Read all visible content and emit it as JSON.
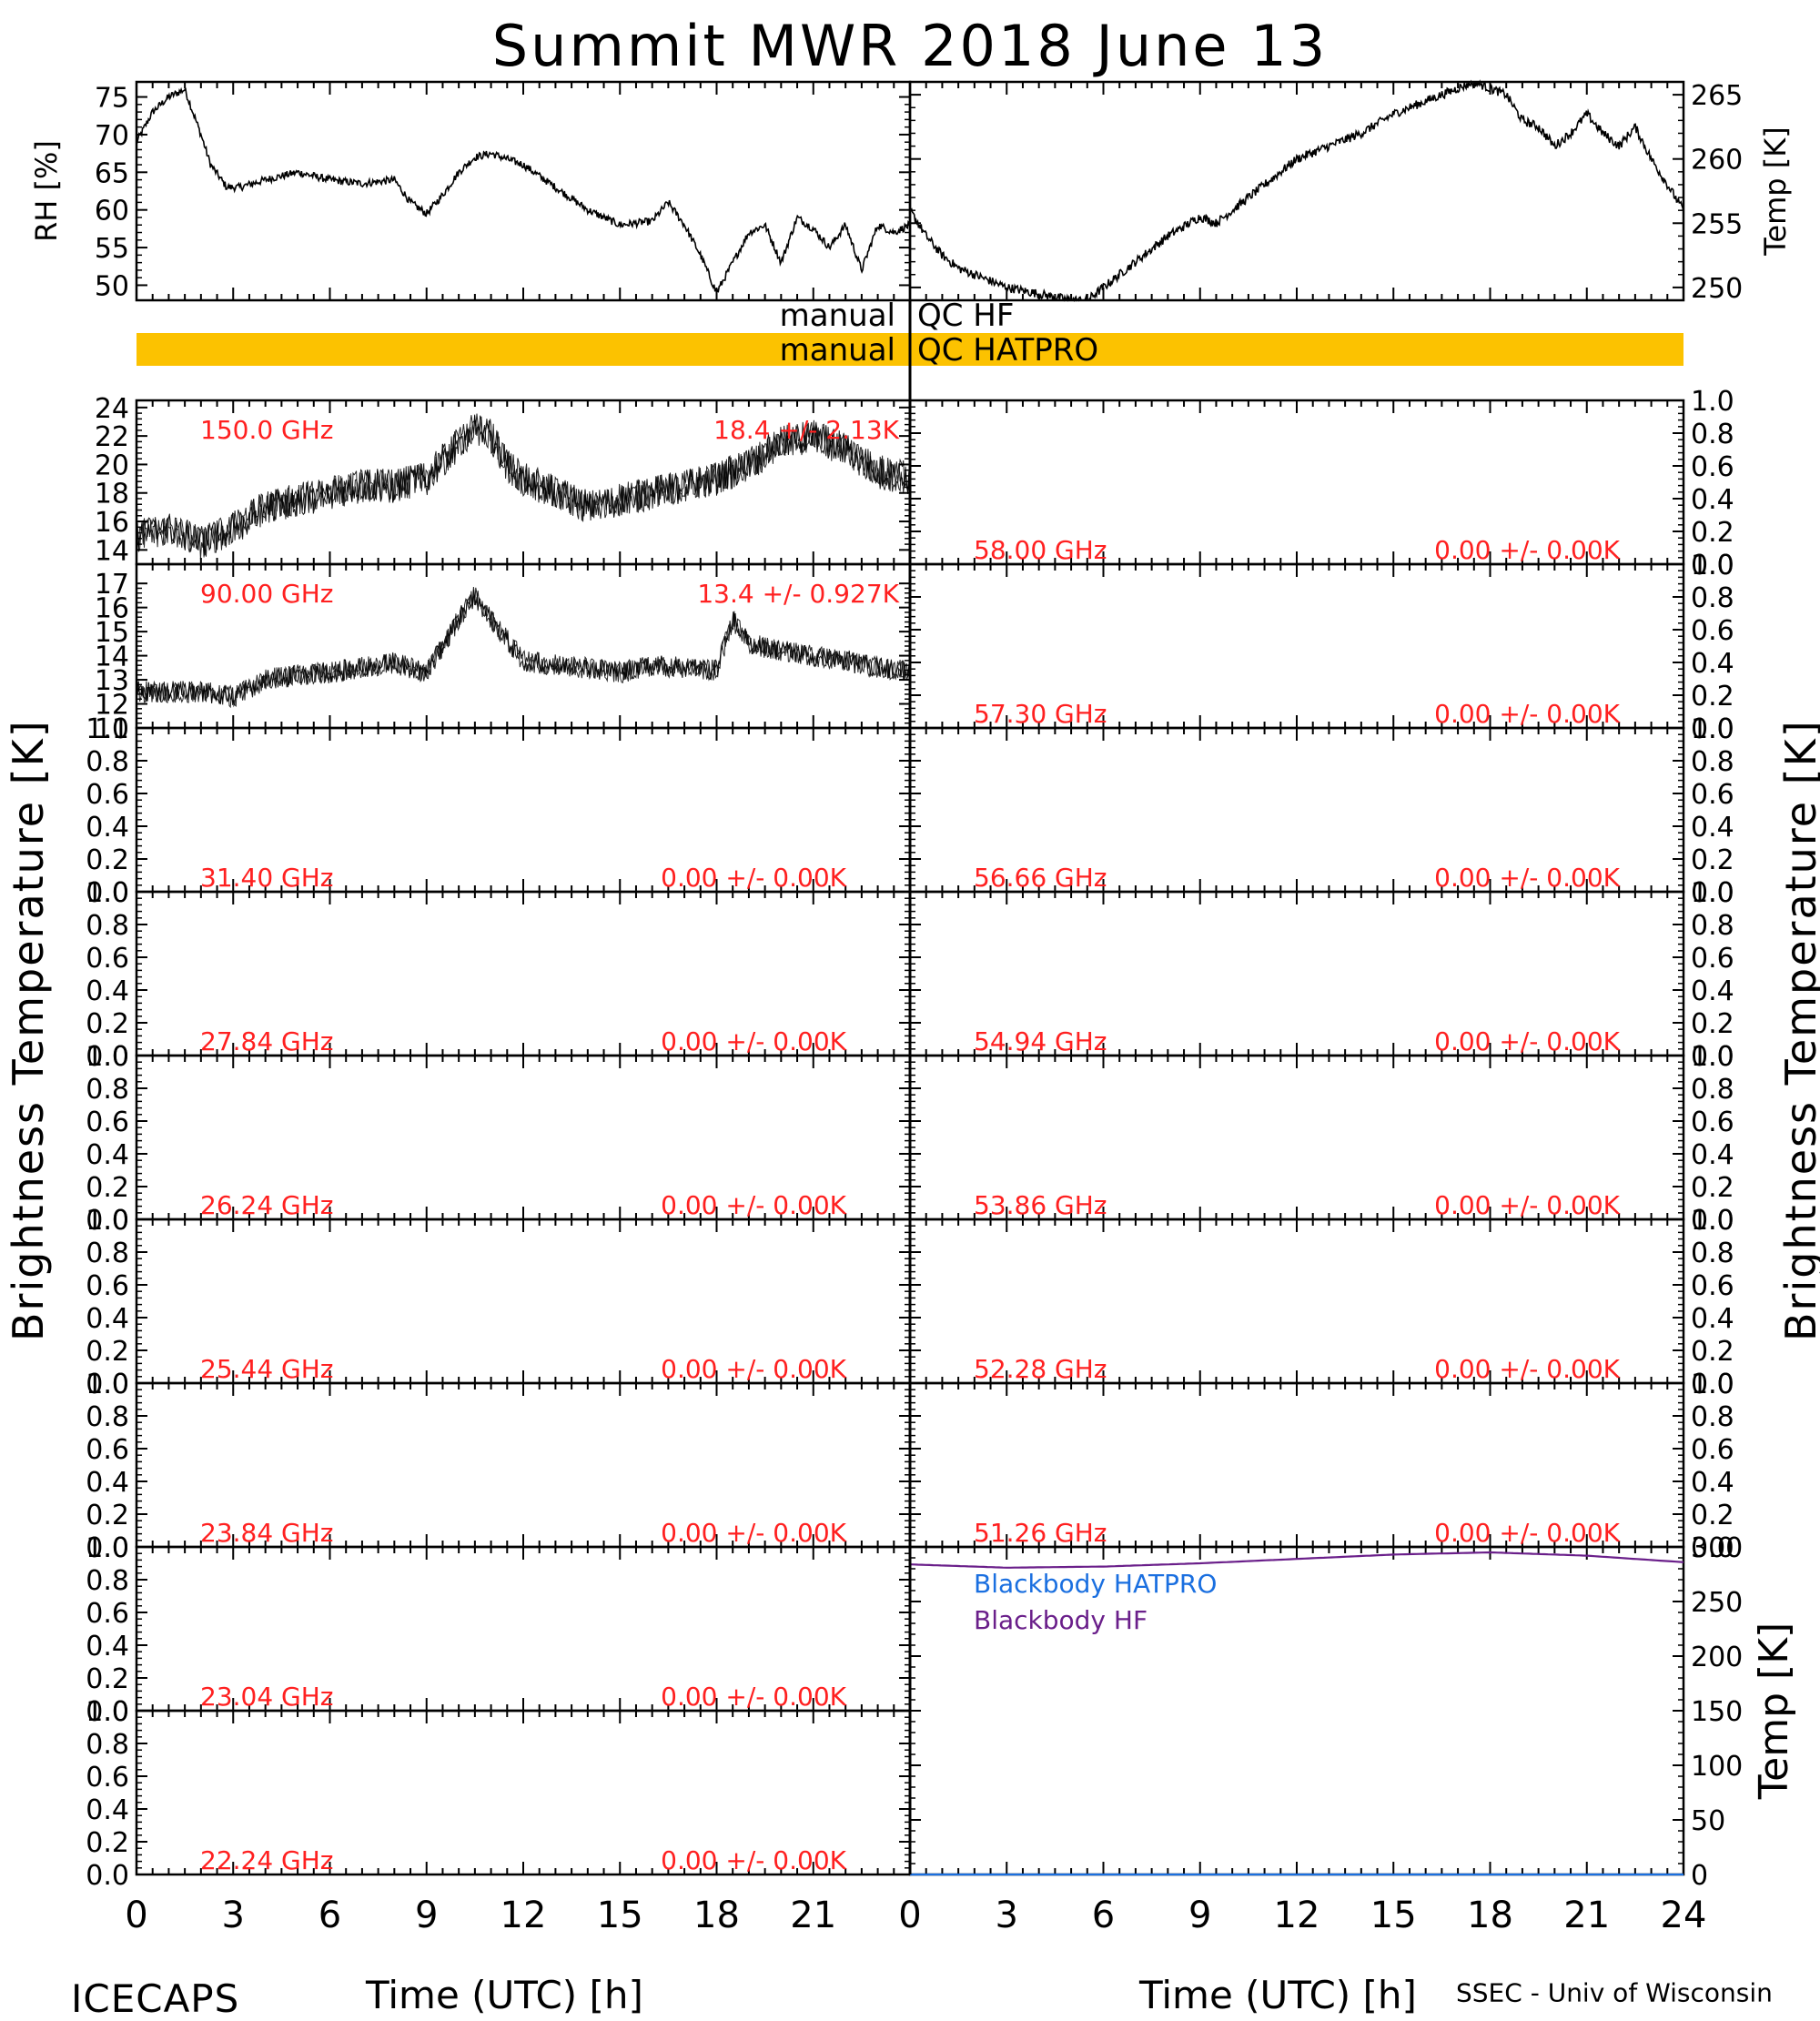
{
  "title": "Summit MWR 2018 June 13",
  "footer": {
    "left": "ICECAPS",
    "right": "SSEC - Univ of Wisconsin"
  },
  "colors": {
    "stat_text": "#ff2020",
    "qc_bar": "#fcc200",
    "bb_hatpro": "#1a6fe0",
    "bb_hf": "#6a1f8a"
  },
  "qc": {
    "hf_label": "manual QC HF",
    "hatpro_label": "manual QC HATPRO"
  },
  "chart_data": [
    {
      "id": "rh",
      "type": "line",
      "ylabel": "RH [%]",
      "xlabel": "",
      "xlim": [
        0,
        24
      ],
      "ylim": [
        48,
        77
      ],
      "yticks": [
        "50",
        "55",
        "60",
        "65",
        "70",
        "75"
      ],
      "x": [
        0,
        0.5,
        1,
        1.5,
        2,
        2.3,
        2.8,
        3.2,
        4,
        5,
        6,
        7,
        8,
        8.5,
        9,
        9.5,
        10,
        10.5,
        11,
        12,
        13,
        14,
        15,
        16,
        16.5,
        17,
        17.5,
        18,
        18.5,
        19,
        19.5,
        20,
        20.5,
        21,
        21.5,
        22,
        22.5,
        23,
        23.5,
        24
      ],
      "y": [
        69,
        73,
        75,
        76,
        70,
        66,
        63,
        63,
        64,
        65,
        64,
        63.5,
        64,
        61,
        59.5,
        62,
        65,
        67,
        67.5,
        66,
        63,
        60,
        58,
        58.5,
        61,
        58,
        54,
        49,
        53,
        57,
        58,
        53,
        59,
        57.5,
        55,
        58,
        52,
        58,
        57,
        58
      ]
    },
    {
      "id": "temp",
      "type": "line",
      "ylabel": "Temp [K]",
      "xlabel": "",
      "xlim": [
        0,
        24
      ],
      "ylim": [
        249,
        266
      ],
      "yticks": [
        "250",
        "255",
        "260",
        "265"
      ],
      "x": [
        0,
        0.5,
        1,
        1.5,
        2,
        3,
        4,
        5,
        5.5,
        6,
        7,
        8,
        9,
        9.5,
        10,
        11,
        12,
        13,
        14,
        15,
        16,
        17,
        17.5,
        18,
        18.5,
        19,
        19.5,
        20,
        20.5,
        21,
        21.5,
        22,
        22.5,
        23,
        23.5,
        24
      ],
      "y": [
        256,
        254,
        252.5,
        251.5,
        251,
        250,
        249.5,
        249,
        249,
        250,
        252,
        254,
        255.5,
        255,
        256,
        258,
        260,
        261,
        262,
        263.5,
        264.5,
        265.5,
        266,
        265.5,
        265,
        263,
        262.5,
        261,
        262,
        263.5,
        262,
        261,
        262.5,
        260,
        258,
        256
      ]
    },
    {
      "id": "b150",
      "type": "line",
      "xlim": [
        0,
        24
      ],
      "ylim": [
        13,
        24.5
      ],
      "yticks": [
        "14",
        "16",
        "18",
        "20",
        "22",
        "24"
      ],
      "ytick_values": [
        14,
        16,
        18,
        20,
        22,
        24
      ],
      "label": "150.0 GHz",
      "stat": "18.4 +/- 2.13K",
      "noise": 1.2,
      "x": [
        0,
        1,
        2,
        3,
        4,
        5,
        6,
        7,
        8,
        9,
        10,
        10.5,
        11,
        11.5,
        12,
        13,
        14,
        15,
        16,
        17,
        18,
        19,
        20,
        21,
        22,
        23,
        24
      ],
      "y": [
        15,
        15.5,
        14.5,
        15.5,
        17,
        17.5,
        18,
        18.5,
        18.5,
        19,
        21.5,
        22.5,
        22,
        20,
        19,
        18,
        17,
        17.5,
        18,
        18.5,
        19,
        20,
        21.5,
        22,
        21,
        19.5,
        19
      ]
    },
    {
      "id": "b90",
      "type": "line",
      "xlim": [
        0,
        24
      ],
      "ylim": [
        11,
        17.8
      ],
      "yticks": [
        "11",
        "12",
        "13",
        "14",
        "15",
        "16",
        "17"
      ],
      "ytick_values": [
        11,
        12,
        13,
        14,
        15,
        16,
        17
      ],
      "label": "90.00 GHz",
      "stat": "13.4 +/- 0.927K",
      "noise": 0.45,
      "x": [
        0,
        1,
        2,
        3,
        4,
        5,
        6,
        7,
        8,
        9,
        10,
        10.5,
        11,
        12,
        13,
        14,
        15,
        16,
        17,
        18,
        18.5,
        19,
        20,
        21,
        22,
        23,
        24
      ],
      "y": [
        12.5,
        12.5,
        12.5,
        12.3,
        13,
        13.2,
        13.3,
        13.5,
        13.7,
        13.3,
        15.5,
        16.5,
        15.5,
        13.8,
        13.6,
        13.5,
        13.3,
        13.6,
        13.5,
        13.4,
        15.5,
        14.5,
        14.2,
        14,
        13.8,
        13.5,
        13.4
      ]
    },
    {
      "id": "b3140",
      "type": "line",
      "xlim": [
        0,
        24
      ],
      "ylim": [
        0,
        1
      ],
      "yticks": [
        "0.0",
        "0.2",
        "0.4",
        "0.6",
        "0.8",
        "1.0"
      ],
      "label": "31.40 GHz",
      "stat": "0.00 +/- 0.00K",
      "x": [],
      "y": []
    },
    {
      "id": "b2784",
      "type": "line",
      "xlim": [
        0,
        24
      ],
      "ylim": [
        0,
        1
      ],
      "yticks": [
        "0.0",
        "0.2",
        "0.4",
        "0.6",
        "0.8",
        "1.0"
      ],
      "label": "27.84 GHz",
      "stat": "0.00 +/- 0.00K",
      "x": [],
      "y": []
    },
    {
      "id": "b2624",
      "type": "line",
      "xlim": [
        0,
        24
      ],
      "ylim": [
        0,
        1
      ],
      "yticks": [
        "0.0",
        "0.2",
        "0.4",
        "0.6",
        "0.8",
        "1.0"
      ],
      "label": "26.24 GHz",
      "stat": "0.00 +/- 0.00K",
      "x": [],
      "y": []
    },
    {
      "id": "b2544",
      "type": "line",
      "xlim": [
        0,
        24
      ],
      "ylim": [
        0,
        1
      ],
      "yticks": [
        "0.0",
        "0.2",
        "0.4",
        "0.6",
        "0.8",
        "1.0"
      ],
      "label": "25.44 GHz",
      "stat": "0.00 +/- 0.00K",
      "x": [],
      "y": []
    },
    {
      "id": "b2384",
      "type": "line",
      "xlim": [
        0,
        24
      ],
      "ylim": [
        0,
        1
      ],
      "yticks": [
        "0.0",
        "0.2",
        "0.4",
        "0.6",
        "0.8",
        "1.0"
      ],
      "label": "23.84 GHz",
      "stat": "0.00 +/- 0.00K",
      "x": [],
      "y": []
    },
    {
      "id": "b2304",
      "type": "line",
      "xlim": [
        0,
        24
      ],
      "ylim": [
        0,
        1
      ],
      "yticks": [
        "0.0",
        "0.2",
        "0.4",
        "0.6",
        "0.8",
        "1.0"
      ],
      "label": "23.04 GHz",
      "stat": "0.00 +/- 0.00K",
      "x": [],
      "y": []
    },
    {
      "id": "b2224",
      "type": "line",
      "xlim": [
        0,
        24
      ],
      "ylim": [
        0,
        1
      ],
      "yticks": [
        "0.0",
        "0.2",
        "0.4",
        "0.6",
        "0.8",
        "1.0"
      ],
      "label": "22.24 GHz",
      "stat": "0.00 +/- 0.00K",
      "x": [],
      "y": []
    },
    {
      "id": "b5800",
      "type": "line",
      "xlim": [
        0,
        24
      ],
      "ylim": [
        0,
        1
      ],
      "yticks": [
        "0.0",
        "0.2",
        "0.4",
        "0.6",
        "0.8",
        "1.0"
      ],
      "label": "58.00 GHz",
      "stat": "0.00 +/- 0.00K",
      "x": [],
      "y": []
    },
    {
      "id": "b5730",
      "type": "line",
      "xlim": [
        0,
        24
      ],
      "ylim": [
        0,
        1
      ],
      "yticks": [
        "0.0",
        "0.2",
        "0.4",
        "0.6",
        "0.8",
        "1.0"
      ],
      "label": "57.30 GHz",
      "stat": "0.00 +/- 0.00K",
      "x": [],
      "y": []
    },
    {
      "id": "b5666",
      "type": "line",
      "xlim": [
        0,
        24
      ],
      "ylim": [
        0,
        1
      ],
      "yticks": [
        "0.0",
        "0.2",
        "0.4",
        "0.6",
        "0.8",
        "1.0"
      ],
      "label": "56.66 GHz",
      "stat": "0.00 +/- 0.00K",
      "x": [],
      "y": []
    },
    {
      "id": "b5494",
      "type": "line",
      "xlim": [
        0,
        24
      ],
      "ylim": [
        0,
        1
      ],
      "yticks": [
        "0.0",
        "0.2",
        "0.4",
        "0.6",
        "0.8",
        "1.0"
      ],
      "label": "54.94 GHz",
      "stat": "0.00 +/- 0.00K",
      "x": [],
      "y": []
    },
    {
      "id": "b5386",
      "type": "line",
      "xlim": [
        0,
        24
      ],
      "ylim": [
        0,
        1
      ],
      "yticks": [
        "0.0",
        "0.2",
        "0.4",
        "0.6",
        "0.8",
        "1.0"
      ],
      "label": "53.86 GHz",
      "stat": "0.00 +/- 0.00K",
      "x": [],
      "y": []
    },
    {
      "id": "b5228",
      "type": "line",
      "xlim": [
        0,
        24
      ],
      "ylim": [
        0,
        1
      ],
      "yticks": [
        "0.0",
        "0.2",
        "0.4",
        "0.6",
        "0.8",
        "1.0"
      ],
      "label": "52.28 GHz",
      "stat": "0.00 +/- 0.00K",
      "x": [],
      "y": []
    },
    {
      "id": "b5126",
      "type": "line",
      "xlim": [
        0,
        24
      ],
      "ylim": [
        0,
        1
      ],
      "yticks": [
        "0.0",
        "0.2",
        "0.4",
        "0.6",
        "0.8",
        "1.0"
      ],
      "label": "51.26 GHz",
      "stat": "0.00 +/- 0.00K",
      "x": [],
      "y": []
    },
    {
      "id": "blackbody",
      "type": "line",
      "ylabel": "Temp [K]",
      "xlim": [
        0,
        24
      ],
      "ylim": [
        0,
        300
      ],
      "yticks": [
        "0",
        "50",
        "100",
        "150",
        "200",
        "250",
        "300"
      ],
      "ytick_values": [
        0,
        50,
        100,
        150,
        200,
        250,
        300
      ],
      "series": [
        {
          "name": "Blackbody HATPRO",
          "color": "#1a6fe0",
          "x": [
            0,
            6,
            12,
            18,
            24
          ],
          "y": [
            0,
            0,
            0,
            0,
            0
          ]
        },
        {
          "name": "Blackbody HF",
          "color": "#6a1f8a",
          "x": [
            0,
            3,
            6,
            9,
            12,
            15,
            18,
            21,
            24
          ],
          "y": [
            284,
            281,
            282,
            285,
            289,
            293,
            295,
            292,
            286
          ]
        }
      ]
    }
  ],
  "xaxis": {
    "label": "Time (UTC) [h]",
    "ticks": [
      "0",
      "3",
      "6",
      "9",
      "12",
      "15",
      "18",
      "21"
    ],
    "ticks_right": [
      "0",
      "3",
      "6",
      "9",
      "12",
      "15",
      "18",
      "21",
      "24"
    ],
    "values": [
      0,
      3,
      6,
      9,
      12,
      15,
      18,
      21,
      24
    ]
  },
  "bt_ylabel": "Brightness Temperature [K]"
}
